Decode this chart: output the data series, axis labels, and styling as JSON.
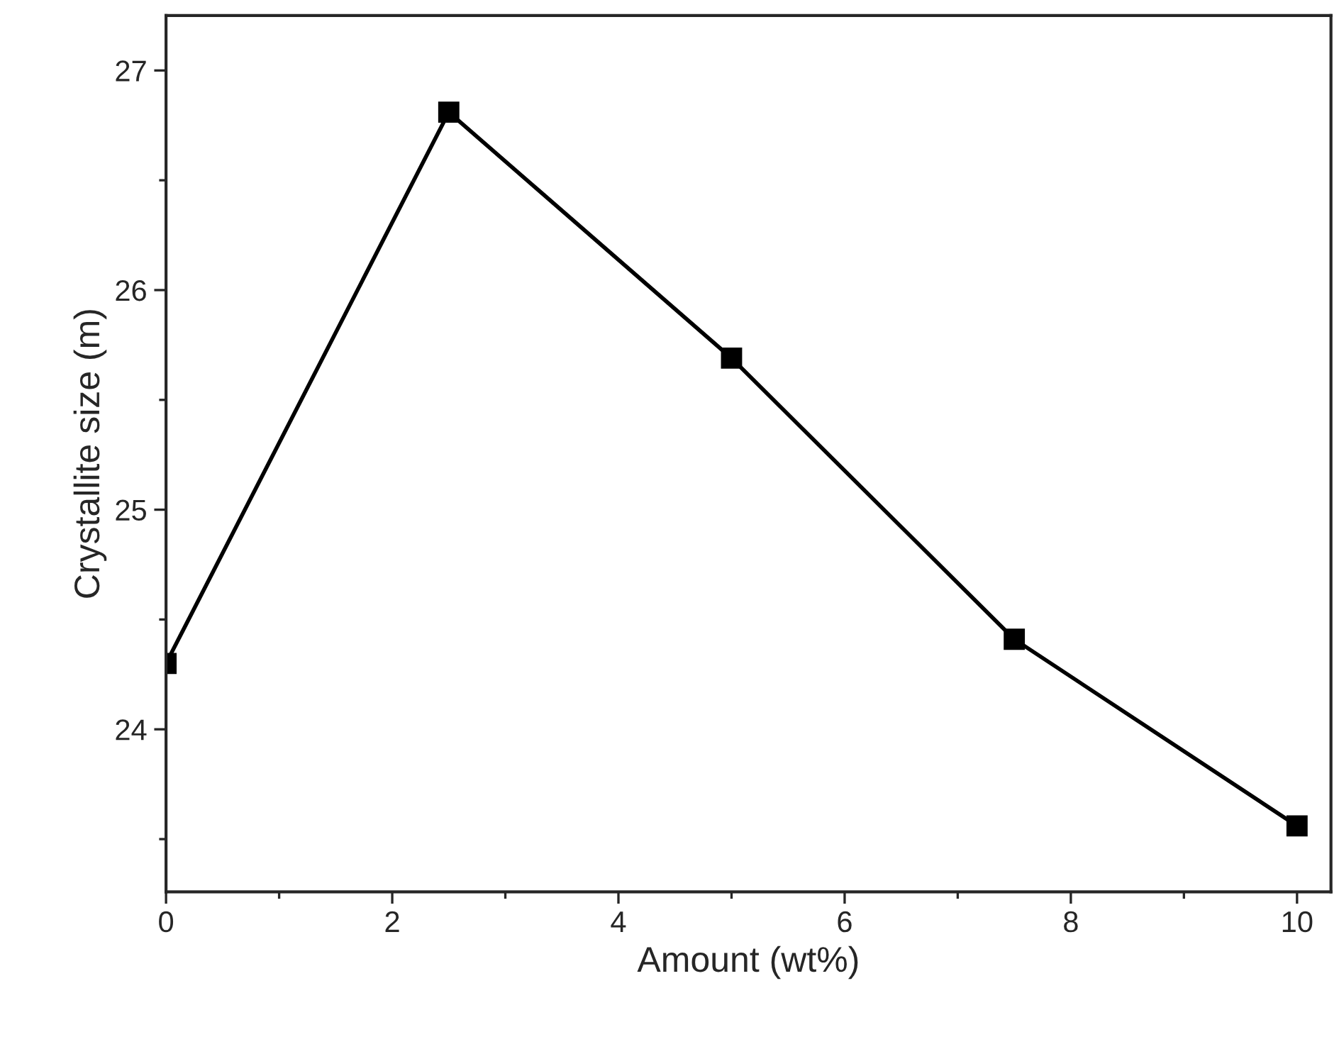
{
  "chart_data": {
    "type": "line",
    "xlabel": "Amount (wt%)",
    "ylabel": "Crystallite size (m)",
    "x": [
      0,
      2.5,
      5,
      7.5,
      10
    ],
    "series": [
      {
        "color": "#000000",
        "values": [
          24.3,
          26.81,
          25.69,
          24.41,
          23.56
        ]
      }
    ],
    "xlim": [
      0,
      10.3
    ],
    "xticks": [
      0,
      2,
      4,
      6,
      8,
      10
    ],
    "ylim": [
      23.26,
      27.25
    ],
    "yticks": [
      24,
      25,
      26,
      27
    ],
    "marker": "square",
    "line_style": "solid",
    "grid": false,
    "legend": false
  }
}
